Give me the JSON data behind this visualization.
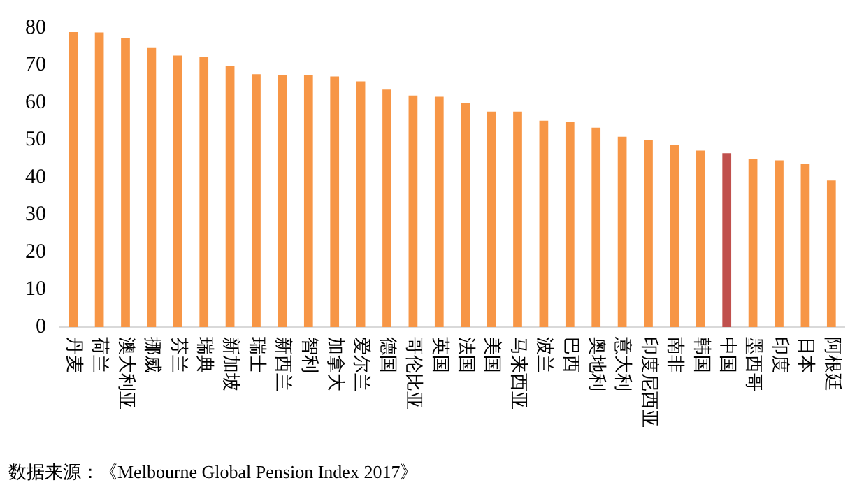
{
  "chart_data": {
    "type": "bar",
    "categories": [
      "丹麦",
      "荷兰",
      "澳大利亚",
      "挪威",
      "芬兰",
      "瑞典",
      "新加坡",
      "瑞士",
      "新西兰",
      "智利",
      "加拿大",
      "爱尔兰",
      "德国",
      "哥伦比亚",
      "英国",
      "法国",
      "美国",
      "马来西亚",
      "波兰",
      "巴西",
      "奥地利",
      "意大利",
      "印度尼西亚",
      "南非",
      "韩国",
      "中国",
      "墨西哥",
      "印度",
      "日本",
      "阿根廷"
    ],
    "values": [
      78.9,
      78.8,
      77.2,
      74.8,
      72.6,
      72.2,
      69.7,
      67.6,
      67.4,
      67.3,
      67.0,
      65.7,
      63.5,
      61.9,
      61.6,
      59.8,
      57.6,
      57.6,
      55.2,
      54.8,
      53.3,
      50.9,
      50.0,
      48.8,
      47.2,
      46.5,
      44.9,
      44.6,
      43.7,
      39.2
    ],
    "colors": [
      "#f79646",
      "#f79646",
      "#f79646",
      "#f79646",
      "#f79646",
      "#f79646",
      "#f79646",
      "#f79646",
      "#f79646",
      "#f79646",
      "#f79646",
      "#f79646",
      "#f79646",
      "#f79646",
      "#f79646",
      "#f79646",
      "#f79646",
      "#f79646",
      "#f79646",
      "#f79646",
      "#f79646",
      "#f79646",
      "#f79646",
      "#f79646",
      "#f79646",
      "#c0504d",
      "#f79646",
      "#f79646",
      "#f79646",
      "#f79646"
    ],
    "ylim": [
      0,
      80
    ],
    "yticks": [
      0,
      10,
      20,
      30,
      40,
      50,
      60,
      70,
      80
    ],
    "grid": false,
    "legend": false,
    "annotations": [
      "数据来源：《Melbourne Global Pension Index 2017》"
    ]
  }
}
